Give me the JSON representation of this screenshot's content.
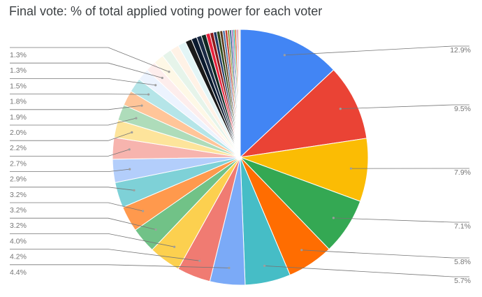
{
  "chart_data": {
    "type": "pie",
    "title": "Final vote: % of total applied voting power for each voter",
    "legend": "none",
    "slices": [
      {
        "value": 12.9,
        "label": "12.9%",
        "color": "#4285F4"
      },
      {
        "value": 9.5,
        "label": "9.5%",
        "color": "#EA4335"
      },
      {
        "value": 7.9,
        "label": "7.9%",
        "color": "#FBBC04"
      },
      {
        "value": 7.1,
        "label": "7.1%",
        "color": "#34A853"
      },
      {
        "value": 5.8,
        "label": "5.8%",
        "color": "#FF6D01"
      },
      {
        "value": 5.7,
        "label": "5.7%",
        "color": "#46BDC6"
      },
      {
        "value": 4.4,
        "label": "4.4%",
        "color": "#7BAAF7"
      },
      {
        "value": 4.2,
        "label": "4.2%",
        "color": "#F07B72"
      },
      {
        "value": 4.0,
        "label": "4.0%",
        "color": "#FCD04F"
      },
      {
        "value": 3.2,
        "label": "3.2%",
        "color": "#71C287"
      },
      {
        "value": 3.2,
        "label": "3.2%",
        "color": "#FF994D"
      },
      {
        "value": 3.2,
        "label": "3.2%",
        "color": "#7ED1D7"
      },
      {
        "value": 2.9,
        "label": "2.9%",
        "color": "#B3CEFB"
      },
      {
        "value": 2.7,
        "label": "2.7%",
        "color": "#F7B4AE"
      },
      {
        "value": 2.2,
        "label": "2.2%",
        "color": "#FDE49B"
      },
      {
        "value": 2.0,
        "label": "2.0%",
        "color": "#AEDCBA"
      },
      {
        "value": 1.9,
        "label": "1.9%",
        "color": "#FFC599"
      },
      {
        "value": 1.8,
        "label": "1.8%",
        "color": "#B5E5E8"
      },
      {
        "value": 1.5,
        "label": "1.5%",
        "color": "#ECF3FE"
      },
      {
        "value": 1.3,
        "label": "1.3%",
        "color": "#FDEDEC"
      },
      {
        "value": 1.3,
        "label": "1.3%",
        "color": "#FEF8E6"
      },
      {
        "value": 1.2,
        "label": "",
        "color": "#E6F4EA"
      },
      {
        "value": 1.1,
        "label": "",
        "color": "#FFF2E6"
      },
      {
        "value": 1.0,
        "label": "",
        "color": "#E3F5F6"
      },
      {
        "value": 0.8,
        "label": "",
        "color": "#1A1A1A"
      },
      {
        "value": 0.7,
        "label": "",
        "color": "#0B1A2E"
      },
      {
        "value": 0.6,
        "label": "",
        "color": "#1B2B45"
      },
      {
        "value": 0.6,
        "label": "",
        "color": "#112A24"
      },
      {
        "value": 0.5,
        "label": "",
        "color": "#E8213C"
      },
      {
        "value": 0.45,
        "label": "",
        "color": "#8B1A1A"
      },
      {
        "value": 0.4,
        "label": "",
        "color": "#1F3864"
      },
      {
        "value": 0.4,
        "label": "",
        "color": "#2E4A1E"
      },
      {
        "value": 0.35,
        "label": "",
        "color": "#5B3A1A"
      },
      {
        "value": 0.3,
        "label": "",
        "color": "#4A6FA5"
      },
      {
        "value": 0.3,
        "label": "",
        "color": "#C0392B"
      },
      {
        "value": 0.25,
        "label": "",
        "color": "#7D8A2E"
      },
      {
        "value": 0.25,
        "label": "",
        "color": "#2C5F8A"
      },
      {
        "value": 0.2,
        "label": "",
        "color": "#8E44AD"
      },
      {
        "value": 0.2,
        "label": "",
        "color": "#16A085"
      },
      {
        "value": 0.2,
        "label": "",
        "color": "#D35400"
      },
      {
        "value": 0.15,
        "label": "",
        "color": "#9B59B6"
      },
      {
        "value": 0.15,
        "label": "",
        "color": "#E74C3C"
      },
      {
        "value": 0.1,
        "label": "",
        "color": "#3498DB"
      },
      {
        "value": 0.1,
        "label": "",
        "color": "#F39C12"
      }
    ]
  }
}
